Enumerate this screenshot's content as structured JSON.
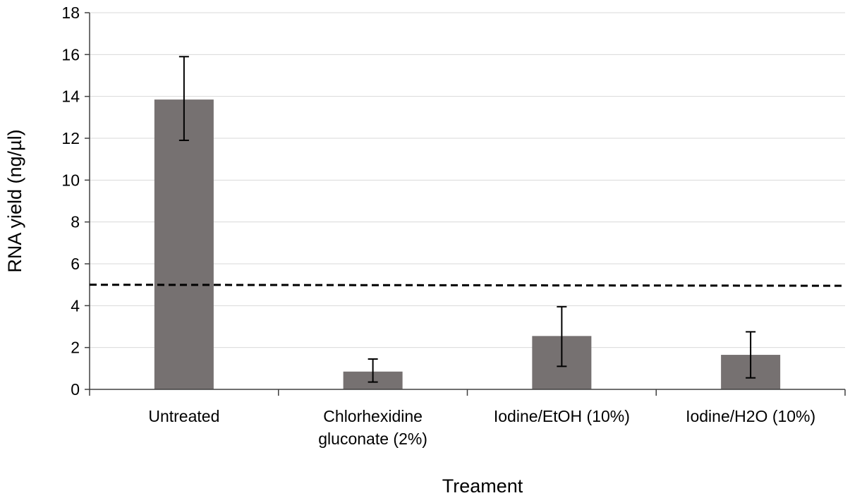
{
  "chart_data": {
    "type": "bar",
    "title": "",
    "xlabel": "Treament",
    "ylabel": "RNA yield (ng/µl)",
    "ylim": [
      0,
      18
    ],
    "yticks": [
      0,
      2,
      4,
      6,
      8,
      10,
      12,
      14,
      16,
      18
    ],
    "grid": true,
    "categories": [
      [
        "Untreated"
      ],
      [
        "Chlorhexidine",
        "gluconate (2%)"
      ],
      [
        "Iodine/EtOH (10%)"
      ],
      [
        "Iodine/H2O (10%)"
      ]
    ],
    "values": [
      13.85,
      0.85,
      2.55,
      1.65
    ],
    "error_low": [
      11.9,
      0.35,
      1.1,
      0.55
    ],
    "error_high": [
      15.9,
      1.45,
      3.95,
      2.75
    ],
    "bar_color": "#767171",
    "reference_line": {
      "y": 5.0,
      "y_end": 4.95,
      "style": "dashed"
    }
  }
}
